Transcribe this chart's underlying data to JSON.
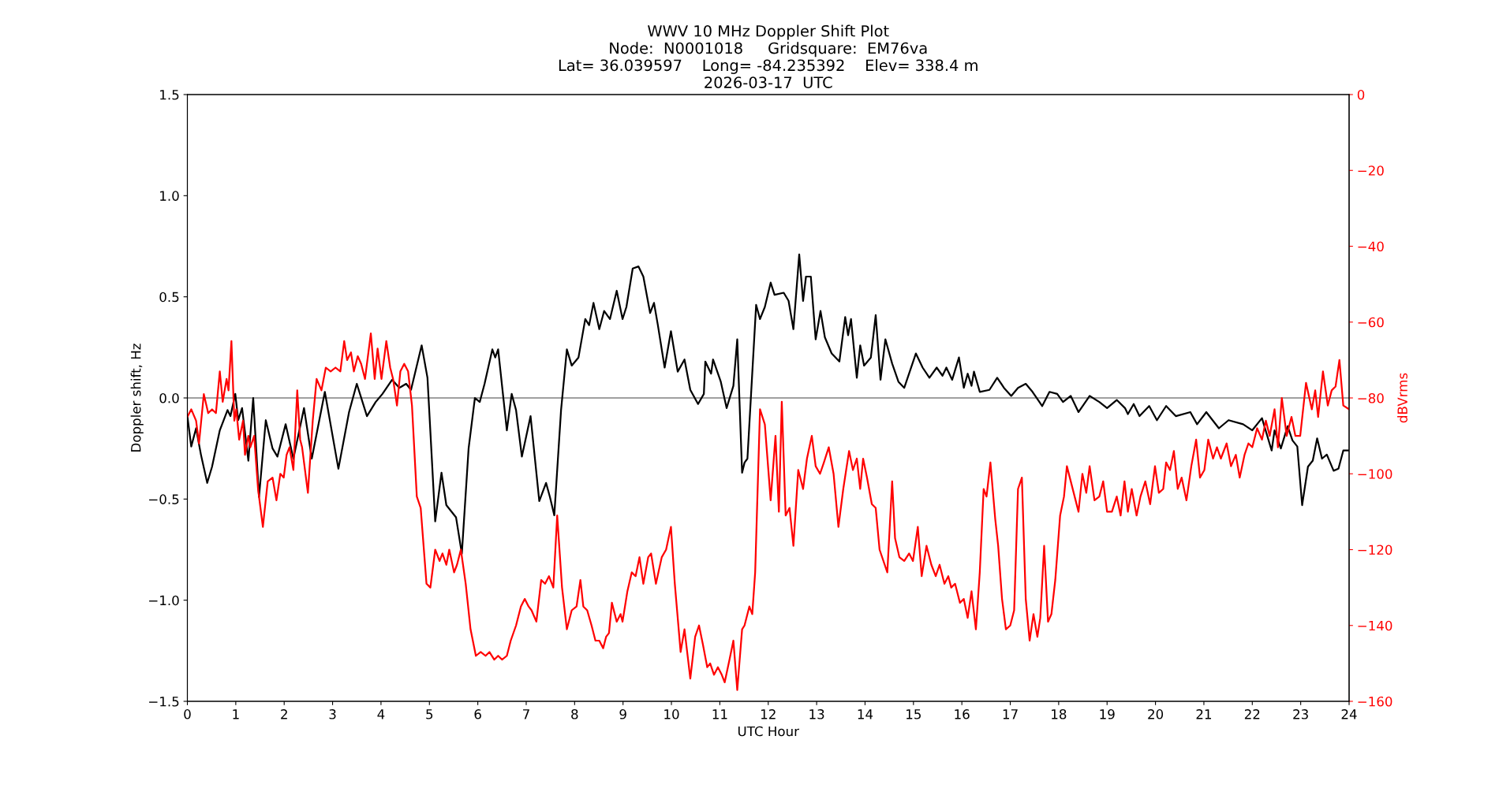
{
  "chart_data": {
    "type": "line",
    "title": "WWV 10 MHz Doppler Shift Plot\nNode:  N0001018     Gridsquare:  EM76va\nLat= 36.039597    Long= -84.235392    Elev= 338.4 m\n2026-03-17  UTC",
    "xlabel": "UTC Hour",
    "ylabel": "Doppler shift, Hz",
    "y2label": "dBVrms",
    "xlim": [
      0,
      24
    ],
    "xticks": [
      0,
      1,
      2,
      3,
      4,
      5,
      6,
      7,
      8,
      9,
      10,
      11,
      12,
      13,
      14,
      15,
      16,
      17,
      18,
      19,
      20,
      21,
      22,
      23,
      24
    ],
    "ylim": [
      -1.5,
      1.5
    ],
    "yticks": [
      -1.5,
      {
        "value": -1,
        "label": "−1.0"
      },
      -0.5,
      {
        "value": 0,
        "label": "0.0"
      },
      0.5,
      {
        "value": 1,
        "label": "1.0"
      },
      1.5
    ],
    "y2lim": [
      -160,
      0
    ],
    "y2ticks": [
      -160,
      -140,
      -120,
      -100,
      -80,
      -60,
      -40,
      -20,
      0
    ],
    "grid": false,
    "legend": false,
    "marker": "none",
    "line_style": "solid",
    "ref_lines": [
      {
        "axis": "y",
        "value": 0,
        "color": "#808080",
        "line_style": "solid"
      }
    ],
    "series": [
      {
        "color": "#000000",
        "axis": "y",
        "x": [
          0.0,
          0.08,
          0.18,
          0.28,
          0.41,
          0.51,
          0.67,
          0.83,
          0.89,
          0.99,
          1.05,
          1.13,
          1.26,
          1.36,
          1.48,
          1.62,
          1.76,
          1.86,
          2.03,
          2.19,
          2.41,
          2.57,
          2.84,
          3.12,
          3.34,
          3.5,
          3.71,
          3.89,
          4.03,
          4.23,
          4.38,
          4.52,
          4.62,
          4.74,
          4.84,
          4.96,
          5.12,
          5.25,
          5.35,
          5.45,
          5.55,
          5.67,
          5.81,
          5.94,
          6.04,
          6.14,
          6.3,
          6.36,
          6.42,
          6.6,
          6.7,
          6.79,
          6.91,
          7.09,
          7.27,
          7.41,
          7.49,
          7.58,
          7.72,
          7.84,
          7.94,
          8.08,
          8.22,
          8.3,
          8.39,
          8.51,
          8.61,
          8.73,
          8.87,
          8.99,
          9.07,
          9.2,
          9.32,
          9.42,
          9.56,
          9.64,
          9.72,
          9.86,
          9.99,
          10.13,
          10.27,
          10.39,
          10.55,
          10.67,
          10.7,
          10.82,
          10.86,
          11.02,
          11.14,
          11.28,
          11.36,
          11.46,
          11.51,
          11.57,
          11.75,
          11.83,
          11.93,
          12.05,
          12.13,
          12.32,
          12.42,
          12.52,
          12.64,
          12.72,
          12.78,
          12.88,
          12.98,
          13.08,
          13.17,
          13.31,
          13.47,
          13.59,
          13.65,
          13.71,
          13.83,
          13.9,
          13.98,
          14.12,
          14.22,
          14.32,
          14.42,
          14.56,
          14.69,
          14.81,
          15.05,
          15.19,
          15.33,
          15.48,
          15.6,
          15.68,
          15.8,
          15.94,
          16.04,
          16.12,
          16.2,
          16.25,
          16.37,
          16.57,
          16.73,
          16.87,
          17.02,
          17.16,
          17.32,
          17.46,
          17.66,
          17.81,
          17.97,
          18.09,
          18.25,
          18.41,
          18.64,
          18.84,
          19.0,
          19.2,
          19.37,
          19.43,
          19.55,
          19.67,
          19.87,
          20.03,
          20.22,
          20.42,
          20.72,
          20.86,
          21.05,
          21.31,
          21.51,
          21.81,
          22.0,
          22.2,
          22.4,
          22.46,
          22.59,
          22.73,
          22.83,
          22.93,
          23.03,
          23.15,
          23.25,
          23.34,
          23.44,
          23.54,
          23.68,
          23.78,
          23.88,
          24.0
        ],
        "values": [
          -0.09,
          -0.24,
          -0.15,
          -0.28,
          -0.42,
          -0.34,
          -0.16,
          -0.06,
          -0.09,
          0.02,
          -0.11,
          -0.05,
          -0.31,
          0.0,
          -0.49,
          -0.11,
          -0.25,
          -0.29,
          -0.13,
          -0.3,
          -0.05,
          -0.3,
          0.03,
          -0.35,
          -0.07,
          0.07,
          -0.09,
          -0.02,
          0.02,
          0.09,
          0.05,
          0.07,
          0.04,
          0.16,
          0.26,
          0.1,
          -0.61,
          -0.37,
          -0.53,
          -0.56,
          -0.59,
          -0.77,
          -0.25,
          0.0,
          -0.02,
          0.07,
          0.24,
          0.2,
          0.24,
          -0.16,
          0.02,
          -0.06,
          -0.29,
          -0.09,
          -0.51,
          -0.42,
          -0.49,
          -0.58,
          -0.06,
          0.24,
          0.16,
          0.2,
          0.39,
          0.36,
          0.47,
          0.34,
          0.43,
          0.39,
          0.53,
          0.39,
          0.45,
          0.64,
          0.65,
          0.6,
          0.42,
          0.47,
          0.36,
          0.15,
          0.33,
          0.13,
          0.19,
          0.04,
          -0.03,
          0.02,
          0.18,
          0.12,
          0.19,
          0.08,
          -0.05,
          0.06,
          0.29,
          -0.37,
          -0.32,
          -0.3,
          0.46,
          0.39,
          0.45,
          0.57,
          0.51,
          0.52,
          0.48,
          0.34,
          0.71,
          0.48,
          0.6,
          0.6,
          0.29,
          0.43,
          0.3,
          0.22,
          0.18,
          0.4,
          0.31,
          0.39,
          0.1,
          0.26,
          0.16,
          0.2,
          0.41,
          0.09,
          0.29,
          0.17,
          0.08,
          0.05,
          0.22,
          0.15,
          0.1,
          0.15,
          0.11,
          0.15,
          0.09,
          0.2,
          0.05,
          0.12,
          0.06,
          0.13,
          0.03,
          0.04,
          0.1,
          0.05,
          0.01,
          0.05,
          0.07,
          0.03,
          -0.04,
          0.03,
          0.02,
          -0.02,
          0.01,
          -0.07,
          0.01,
          -0.02,
          -0.05,
          -0.01,
          -0.05,
          -0.08,
          -0.03,
          -0.09,
          -0.04,
          -0.11,
          -0.04,
          -0.09,
          -0.07,
          -0.13,
          -0.07,
          -0.15,
          -0.11,
          -0.13,
          -0.16,
          -0.1,
          -0.26,
          -0.16,
          -0.25,
          -0.14,
          -0.21,
          -0.24,
          -0.53,
          -0.34,
          -0.31,
          -0.2,
          -0.3,
          -0.28,
          -0.36,
          -0.35,
          -0.26,
          -0.26
        ]
      },
      {
        "color": "#ff0000",
        "axis": "y2",
        "x": [
          0.0,
          0.08,
          0.18,
          0.24,
          0.34,
          0.43,
          0.51,
          0.59,
          0.67,
          0.73,
          0.81,
          0.85,
          0.91,
          0.97,
          1.01,
          1.07,
          1.15,
          1.19,
          1.26,
          1.3,
          1.38,
          1.46,
          1.56,
          1.66,
          1.76,
          1.84,
          1.92,
          1.99,
          2.05,
          2.11,
          2.19,
          2.27,
          2.33,
          2.37,
          2.49,
          2.59,
          2.67,
          2.77,
          2.86,
          2.96,
          3.06,
          3.16,
          3.24,
          3.3,
          3.38,
          3.44,
          3.52,
          3.59,
          3.67,
          3.79,
          3.87,
          3.93,
          4.01,
          4.11,
          4.19,
          4.25,
          4.33,
          4.4,
          4.48,
          4.56,
          4.64,
          4.74,
          4.82,
          4.94,
          5.02,
          5.12,
          5.21,
          5.27,
          5.35,
          5.41,
          5.51,
          5.57,
          5.65,
          5.75,
          5.85,
          5.96,
          6.06,
          6.16,
          6.24,
          6.34,
          6.42,
          6.5,
          6.6,
          6.68,
          6.79,
          6.89,
          6.97,
          7.05,
          7.11,
          7.21,
          7.31,
          7.39,
          7.47,
          7.56,
          7.64,
          7.74,
          7.84,
          7.94,
          8.04,
          8.12,
          8.18,
          8.26,
          8.35,
          8.43,
          8.51,
          8.59,
          8.65,
          8.71,
          8.77,
          8.87,
          8.95,
          8.99,
          9.09,
          9.18,
          9.26,
          9.34,
          9.42,
          9.52,
          9.58,
          9.68,
          9.8,
          9.89,
          9.99,
          10.07,
          10.19,
          10.27,
          10.39,
          10.49,
          10.57,
          10.65,
          10.74,
          10.8,
          10.88,
          10.96,
          11.04,
          11.1,
          11.2,
          11.28,
          11.36,
          11.46,
          11.51,
          11.61,
          11.67,
          11.73,
          11.83,
          11.93,
          12.05,
          12.15,
          12.22,
          12.28,
          12.36,
          12.44,
          12.52,
          12.62,
          12.72,
          12.8,
          12.9,
          12.98,
          13.07,
          13.15,
          13.25,
          13.35,
          13.45,
          13.55,
          13.67,
          13.75,
          13.83,
          13.9,
          13.96,
          14.04,
          14.14,
          14.22,
          14.3,
          14.46,
          14.56,
          14.62,
          14.71,
          14.81,
          14.91,
          14.99,
          15.09,
          15.17,
          15.27,
          15.37,
          15.46,
          15.54,
          15.64,
          15.72,
          15.78,
          15.86,
          15.96,
          16.04,
          16.12,
          16.2,
          16.29,
          16.37,
          16.45,
          16.51,
          16.59,
          16.69,
          16.75,
          16.83,
          16.91,
          17.0,
          17.08,
          17.16,
          17.24,
          17.32,
          17.4,
          17.48,
          17.56,
          17.62,
          17.7,
          17.78,
          17.85,
          17.93,
          18.03,
          18.11,
          18.17,
          18.25,
          18.33,
          18.41,
          18.49,
          18.57,
          18.64,
          18.74,
          18.84,
          18.92,
          19.0,
          19.1,
          19.2,
          19.28,
          19.36,
          19.43,
          19.51,
          19.61,
          19.69,
          19.79,
          19.89,
          19.99,
          20.07,
          20.16,
          20.22,
          20.3,
          20.38,
          20.46,
          20.54,
          20.64,
          20.74,
          20.84,
          20.92,
          21.01,
          21.09,
          21.19,
          21.27,
          21.35,
          21.47,
          21.56,
          21.66,
          21.74,
          21.84,
          21.92,
          22.0,
          22.1,
          22.2,
          22.28,
          22.36,
          22.46,
          22.53,
          22.61,
          22.71,
          22.81,
          22.89,
          22.99,
          23.11,
          23.23,
          23.3,
          23.36,
          23.46,
          23.56,
          23.64,
          23.72,
          23.8,
          23.88,
          24.0
        ],
        "values": [
          -85,
          -83,
          -86,
          -92,
          -79,
          -84,
          -83,
          -84,
          -73,
          -81,
          -75,
          -78,
          -65,
          -86,
          -83,
          -91,
          -86,
          -95,
          -90,
          -93,
          -90,
          -104,
          -114,
          -102,
          -101,
          -107,
          -100,
          -101,
          -95,
          -93,
          -99,
          -78,
          -91,
          -93,
          -105,
          -86,
          -75,
          -78,
          -72,
          -73,
          -72,
          -73,
          -65,
          -70,
          -68,
          -73,
          -69,
          -71,
          -75,
          -63,
          -75,
          -67,
          -75,
          -65,
          -72,
          -75,
          -82,
          -73,
          -71,
          -73,
          -82,
          -106,
          -109,
          -129,
          -130,
          -120,
          -123,
          -121,
          -124,
          -120,
          -126,
          -124,
          -120,
          -129,
          -141,
          -148,
          -147,
          -148,
          -147,
          -149,
          -148,
          -149,
          -148,
          -144,
          -140,
          -135,
          -133,
          -135,
          -136,
          -139,
          -128,
          -129,
          -127,
          -130,
          -111,
          -130,
          -141,
          -136,
          -135,
          -128,
          -135,
          -136,
          -140,
          -144,
          -144,
          -146,
          -143,
          -142,
          -134,
          -139,
          -137,
          -139,
          -131,
          -126,
          -127,
          -122,
          -129,
          -122,
          -121,
          -129,
          -122,
          -120,
          -114,
          -129,
          -147,
          -141,
          -154,
          -143,
          -140,
          -145,
          -151,
          -150,
          -153,
          -151,
          -153,
          -155,
          -149,
          -144,
          -157,
          -141,
          -140,
          -135,
          -137,
          -126,
          -83,
          -87,
          -107,
          -90,
          -110,
          -81,
          -111,
          -109,
          -119,
          -99,
          -104,
          -96,
          -90,
          -98,
          -100,
          -97,
          -93,
          -100,
          -114,
          -104,
          -94,
          -99,
          -96,
          -104,
          -96,
          -101,
          -108,
          -109,
          -120,
          -126,
          -102,
          -117,
          -122,
          -123,
          -121,
          -123,
          -114,
          -127,
          -119,
          -124,
          -127,
          -124,
          -129,
          -127,
          -130,
          -129,
          -134,
          -133,
          -138,
          -131,
          -141,
          -126,
          -104,
          -106,
          -97,
          -112,
          -119,
          -133,
          -141,
          -140,
          -136,
          -104,
          -101,
          -133,
          -144,
          -137,
          -143,
          -138,
          -119,
          -139,
          -137,
          -128,
          -111,
          -106,
          -98,
          -102,
          -106,
          -110,
          -100,
          -105,
          -98,
          -107,
          -106,
          -102,
          -110,
          -110,
          -106,
          -111,
          -102,
          -110,
          -104,
          -111,
          -106,
          -102,
          -108,
          -98,
          -105,
          -104,
          -97,
          -99,
          -94,
          -104,
          -101,
          -107,
          -98,
          -91,
          -101,
          -99,
          -91,
          -96,
          -93,
          -96,
          -92,
          -98,
          -95,
          -101,
          -95,
          -92,
          -93,
          -88,
          -91,
          -86,
          -90,
          -83,
          -93,
          -80,
          -90,
          -85,
          -90,
          -90,
          -76,
          -83,
          -78,
          -85,
          -73,
          -82,
          -78,
          -77,
          -70,
          -82,
          -83
        ]
      }
    ]
  }
}
